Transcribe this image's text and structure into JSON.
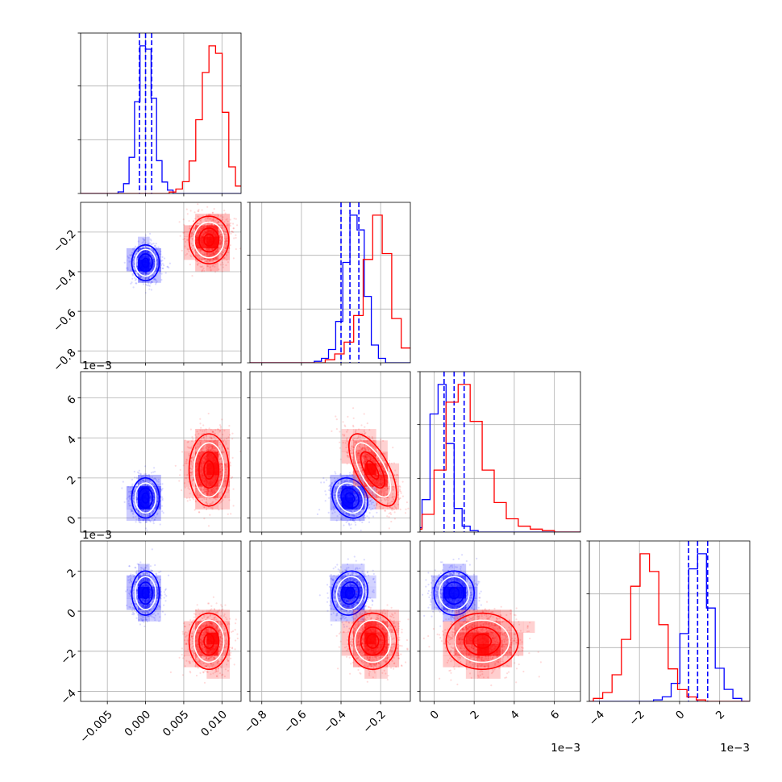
{
  "chart_data": {
    "type": "scatter",
    "kind": "corner plot",
    "grid": true,
    "parameters": [
      {
        "range": [
          -0.0085,
          0.0125
        ],
        "ticks": [
          -0.005,
          0.0,
          0.005,
          0.01
        ],
        "tick_labels": [
          "−0.005",
          "0.000",
          "0.005",
          "0.010"
        ],
        "offset_label": ""
      },
      {
        "range": [
          -0.86,
          -0.05
        ],
        "ticks": [
          -0.8,
          -0.6,
          -0.4,
          -0.2
        ],
        "tick_labels": [
          "−0.8",
          "−0.6",
          "−0.4",
          "−0.2"
        ],
        "offset_label": ""
      },
      {
        "range": [
          -0.7,
          7.3
        ],
        "ticks": [
          0,
          2,
          4,
          6
        ],
        "tick_labels": [
          "0",
          "2",
          "4",
          "6"
        ],
        "offset_label": "1e−3"
      },
      {
        "range": [
          -4.5,
          3.5
        ],
        "ticks": [
          -4,
          -2,
          0,
          2
        ],
        "tick_labels": [
          "−4",
          "−2",
          "0",
          "2"
        ],
        "offset_label": "1e−3"
      }
    ],
    "series": [
      {
        "color": "#0000ff",
        "mean": [
          0.0,
          -0.355,
          1.0,
          0.9
        ],
        "sd": [
          0.0009,
          0.045,
          0.5,
          0.55
        ],
        "corr": [
          [
            1,
            0,
            0,
            0
          ],
          [
            0,
            1,
            -0.2,
            0.1
          ],
          [
            0,
            -0.2,
            1,
            0
          ],
          [
            0,
            0.1,
            0,
            1
          ]
        ],
        "quantiles": [
          [
            -0.0008,
            0.0,
            0.0008
          ],
          [
            -0.4,
            -0.355,
            -0.31
          ],
          [
            0.5,
            1.0,
            1.5
          ],
          [
            0.45,
            0.9,
            1.4
          ]
        ],
        "hist_counts": [
          [
            1,
            6,
            22,
            56,
            90,
            88,
            58,
            20,
            7,
            2
          ],
          [
            1,
            3,
            9,
            28,
            68,
            100,
            90,
            45,
            12,
            3
          ],
          [
            3,
            22,
            80,
            100,
            60,
            16,
            4,
            1,
            0,
            0
          ],
          [
            1,
            3,
            12,
            45,
            88,
            98,
            62,
            22,
            8,
            2
          ]
        ]
      },
      {
        "color": "#ff0000",
        "mean": [
          0.0083,
          -0.24,
          2.4,
          -1.5
        ],
        "sd": [
          0.0013,
          0.06,
          0.9,
          0.7
        ],
        "corr": [
          [
            1,
            0,
            0,
            0
          ],
          [
            0,
            1,
            -0.65,
            0
          ],
          [
            0,
            -0.65,
            1,
            0
          ],
          [
            0,
            0,
            0,
            1
          ]
        ],
        "quantiles": [],
        "hist_counts": [
          [
            1,
            3,
            8,
            22,
            50,
            82,
            100,
            95,
            55,
            18,
            5,
            1
          ],
          [
            2,
            6,
            14,
            32,
            70,
            100,
            74,
            30,
            10,
            3
          ],
          [
            2,
            12,
            42,
            88,
            100,
            75,
            42,
            20,
            9,
            4,
            2,
            1
          ],
          [
            2,
            6,
            18,
            42,
            78,
            100,
            88,
            52,
            22,
            8,
            3,
            1
          ]
        ]
      }
    ]
  }
}
